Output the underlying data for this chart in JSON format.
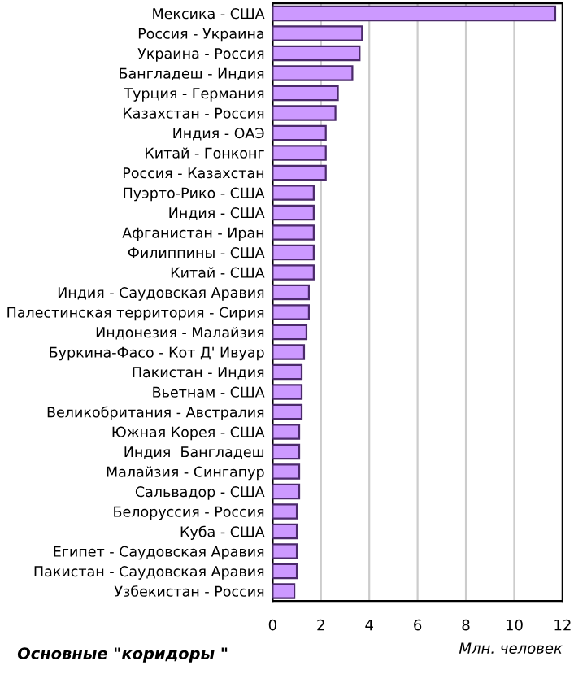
{
  "chart_data": {
    "type": "bar",
    "orientation": "horizontal",
    "xlabel": "Млн. человек",
    "annotations": [
      "Основные \"коридоры \""
    ],
    "categories": [
      "Мексика - США",
      "Россия - Украина",
      "Украина - Россия",
      "Бангладеш - Индия",
      "Турция - Германия",
      "Казахстан - Россия",
      "Индия - ОАЭ",
      "Китай - Гонконг",
      "Россия - Казахстан",
      "Пуэрто-Рико - США",
      "Индия - США",
      "Афганистан - Иран",
      "Филиппины - США",
      "Китай - США",
      "Индия - Саудовская Аравия",
      "Палестинская территория - Сирия",
      "Индонезия - Малайзия",
      "Буркина-Фасо - Кот Д' Ивуар",
      "Пакистан - Индия",
      "Вьетнам - США",
      "Великобритания - Австралия",
      "Южная Корея - США",
      "Индия  Бангладеш",
      "Малайзия - Сингапур",
      "Сальвадор - США",
      "Белоруссия - Россия",
      "Куба - США",
      "Египет - Саудовская Аравия",
      "Пакистан - Саудовская Аравия",
      "Узбекистан - Россия"
    ],
    "values": [
      11.7,
      3.7,
      3.6,
      3.3,
      2.7,
      2.6,
      2.2,
      2.2,
      2.2,
      1.7,
      1.7,
      1.7,
      1.7,
      1.7,
      1.5,
      1.5,
      1.4,
      1.3,
      1.2,
      1.2,
      1.2,
      1.1,
      1.1,
      1.1,
      1.1,
      1.0,
      1.0,
      1.0,
      1.0,
      0.9
    ],
    "color": "#cc99ff",
    "xlim": [
      0,
      12
    ],
    "xticks": [
      0,
      2,
      4,
      6,
      8,
      10,
      12
    ],
    "grid": "x"
  }
}
